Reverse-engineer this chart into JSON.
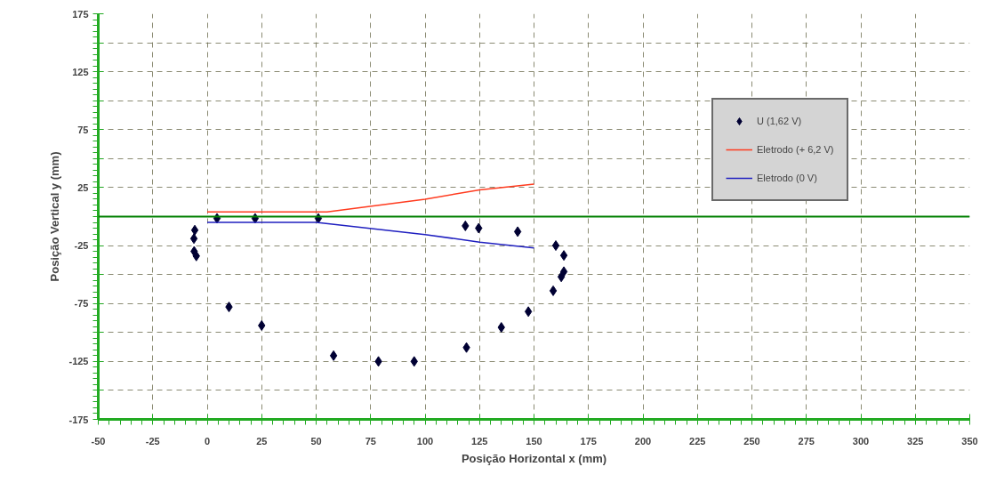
{
  "chart_data": {
    "type": "scatter",
    "xlabel": "Posição Horizontal x (mm)",
    "ylabel": "Posição Vertical y (mm)",
    "xlim": [
      -50,
      350
    ],
    "ylim": [
      -175,
      175
    ],
    "xticks": [
      -50,
      -25,
      0,
      25,
      50,
      75,
      100,
      125,
      150,
      175,
      200,
      225,
      250,
      275,
      300,
      325,
      350
    ],
    "yticks": [
      -175,
      {
        "value": -150,
        "label": null
      },
      -125,
      {
        "value": -100,
        "label": null
      },
      -75,
      {
        "value": -50,
        "label": null
      },
      -25,
      {
        "value": 0,
        "label": null
      },
      25,
      {
        "value": 50,
        "label": null
      },
      75,
      {
        "value": 100,
        "label": null
      },
      125,
      {
        "value": 150,
        "label": null
      },
      175
    ],
    "grid": true,
    "legend": "top right",
    "ref_lines": [
      {
        "axis": "y",
        "value": 0,
        "color": "#008000"
      }
    ],
    "series": [
      {
        "name": "U (1,62 V)",
        "marker": "diamond",
        "color": "#000033",
        "x": [
          -5.7,
          -6.1,
          -6,
          -5,
          4.5,
          22,
          51,
          10,
          25,
          58,
          78.6,
          95,
          119,
          135,
          147.4,
          158.8,
          162.5,
          163.7,
          163.7,
          160,
          142.5,
          124.6,
          118.5
        ],
        "values": [
          -11.7,
          -19,
          -30,
          -34,
          -1.5,
          -1.5,
          -1.5,
          -78,
          -94,
          -120,
          -125,
          -125,
          -113,
          -95.6,
          -82,
          -64,
          -52,
          -47.5,
          -33.5,
          -25,
          -13,
          -10,
          -8
        ]
      },
      {
        "name": "Eletrodo (+ 6,2 V)",
        "type": "line",
        "color": "#ff3b1f",
        "x": [
          0,
          55,
          100,
          125,
          150
        ],
        "values": [
          4,
          4,
          15,
          23,
          28
        ]
      },
      {
        "name": "Eletrodo (0 V)",
        "type": "line",
        "color": "#2020c0",
        "x": [
          0,
          50,
          100,
          125,
          150
        ],
        "values": [
          -5,
          -5,
          -15.5,
          -22,
          -27
        ]
      }
    ]
  }
}
